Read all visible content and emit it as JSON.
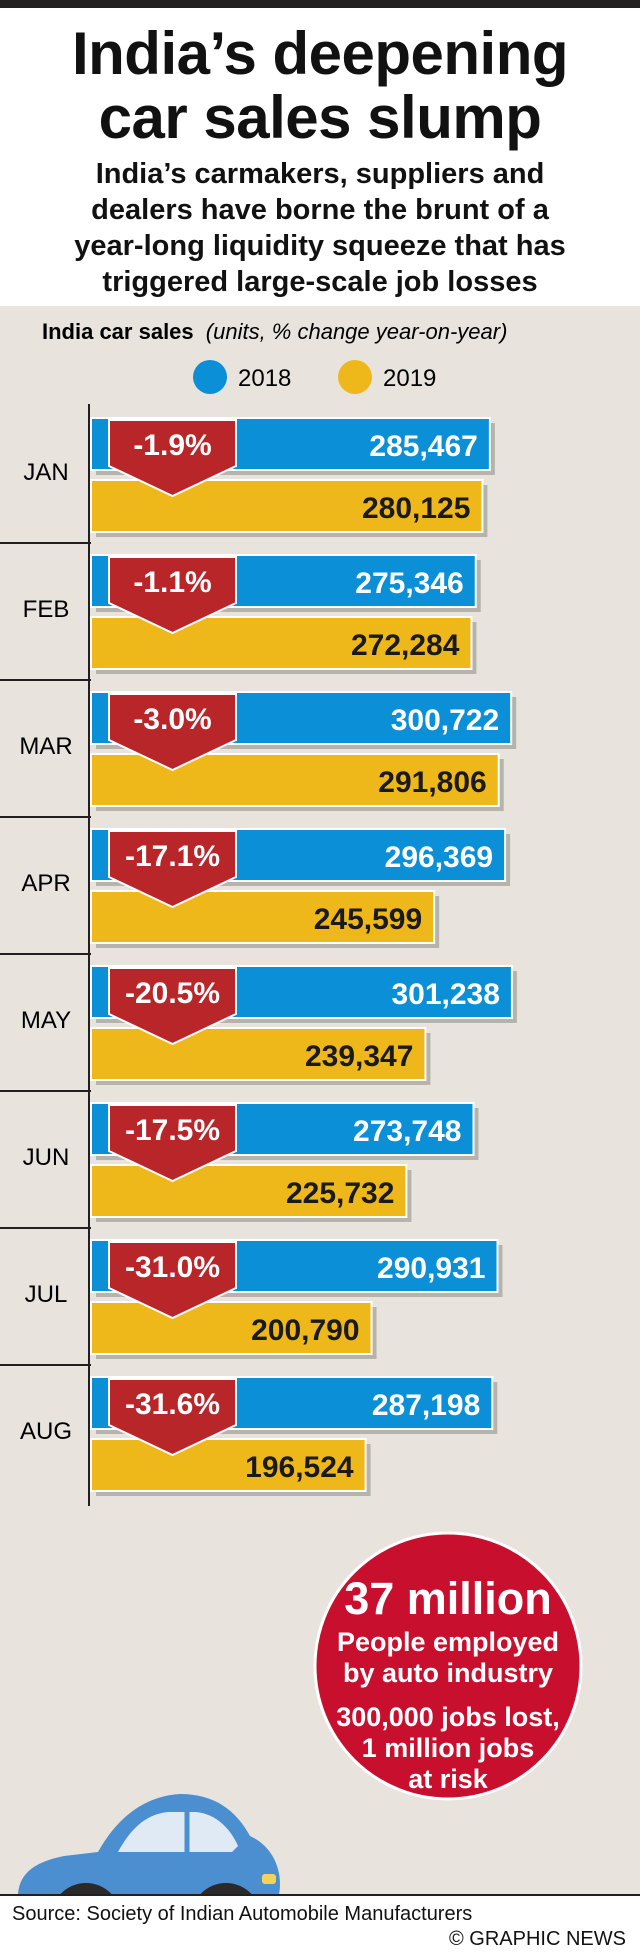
{
  "title_lines": [
    "India’s deepening",
    "car sales slump"
  ],
  "subtitle_lines": [
    "India’s carmakers, suppliers and",
    "dealers have borne the brunt of a",
    "year-long liquidity squeeze that has",
    "triggered large-scale job losses"
  ],
  "colors": {
    "series_2018": "#0b8fd6",
    "series_2019": "#eeb81b",
    "change_badge": "#b8262a",
    "callout": "#c8102e",
    "panel": "#e8e4dd",
    "car": "#4c8fd0"
  },
  "chart_data": {
    "type": "bar",
    "orientation": "horizontal",
    "grouped": true,
    "ylabel": "India car sales",
    "ylabel_unit": "(units, % change year-on-year)",
    "categories": [
      "JAN",
      "FEB",
      "MAR",
      "APR",
      "MAY",
      "JUN",
      "JUL",
      "AUG"
    ],
    "series": [
      {
        "name": "2018",
        "values": [
          285467,
          275346,
          300722,
          296369,
          301238,
          273748,
          290931,
          287198
        ],
        "labels": [
          "285,467",
          "275,346",
          "300,722",
          "296,369",
          "301,238",
          "273,748",
          "290,931",
          "287,198"
        ]
      },
      {
        "name": "2019",
        "values": [
          280125,
          272284,
          291806,
          245599,
          239347,
          225732,
          200790,
          196524
        ],
        "labels": [
          "280,125",
          "272,284",
          "291,806",
          "245,599",
          "239,347",
          "225,732",
          "200,790",
          "196,524"
        ]
      }
    ],
    "pct_change": [
      -1.9,
      -1.1,
      -3.0,
      -17.1,
      -20.5,
      -17.5,
      -31.0,
      -31.6
    ],
    "pct_change_labels": [
      "-1.9%",
      "-1.1%",
      "-3.0%",
      "-17.1%",
      "-20.5%",
      "-17.5%",
      "-31.0%",
      "-31.6%"
    ],
    "legend_position": "top-center",
    "xlim": [
      0,
      365000
    ],
    "grid": false
  },
  "callout": {
    "headline": "37 million",
    "lines_a": [
      "People employed",
      "by auto industry"
    ],
    "lines_b": [
      "300,000 jobs lost,",
      "1 million jobs",
      "at risk"
    ]
  },
  "illustration": {
    "icon": "car-icon"
  },
  "footer": {
    "source": "Source: Society of Indian Automobile Manufacturers",
    "credit": "© GRAPHIC NEWS"
  }
}
